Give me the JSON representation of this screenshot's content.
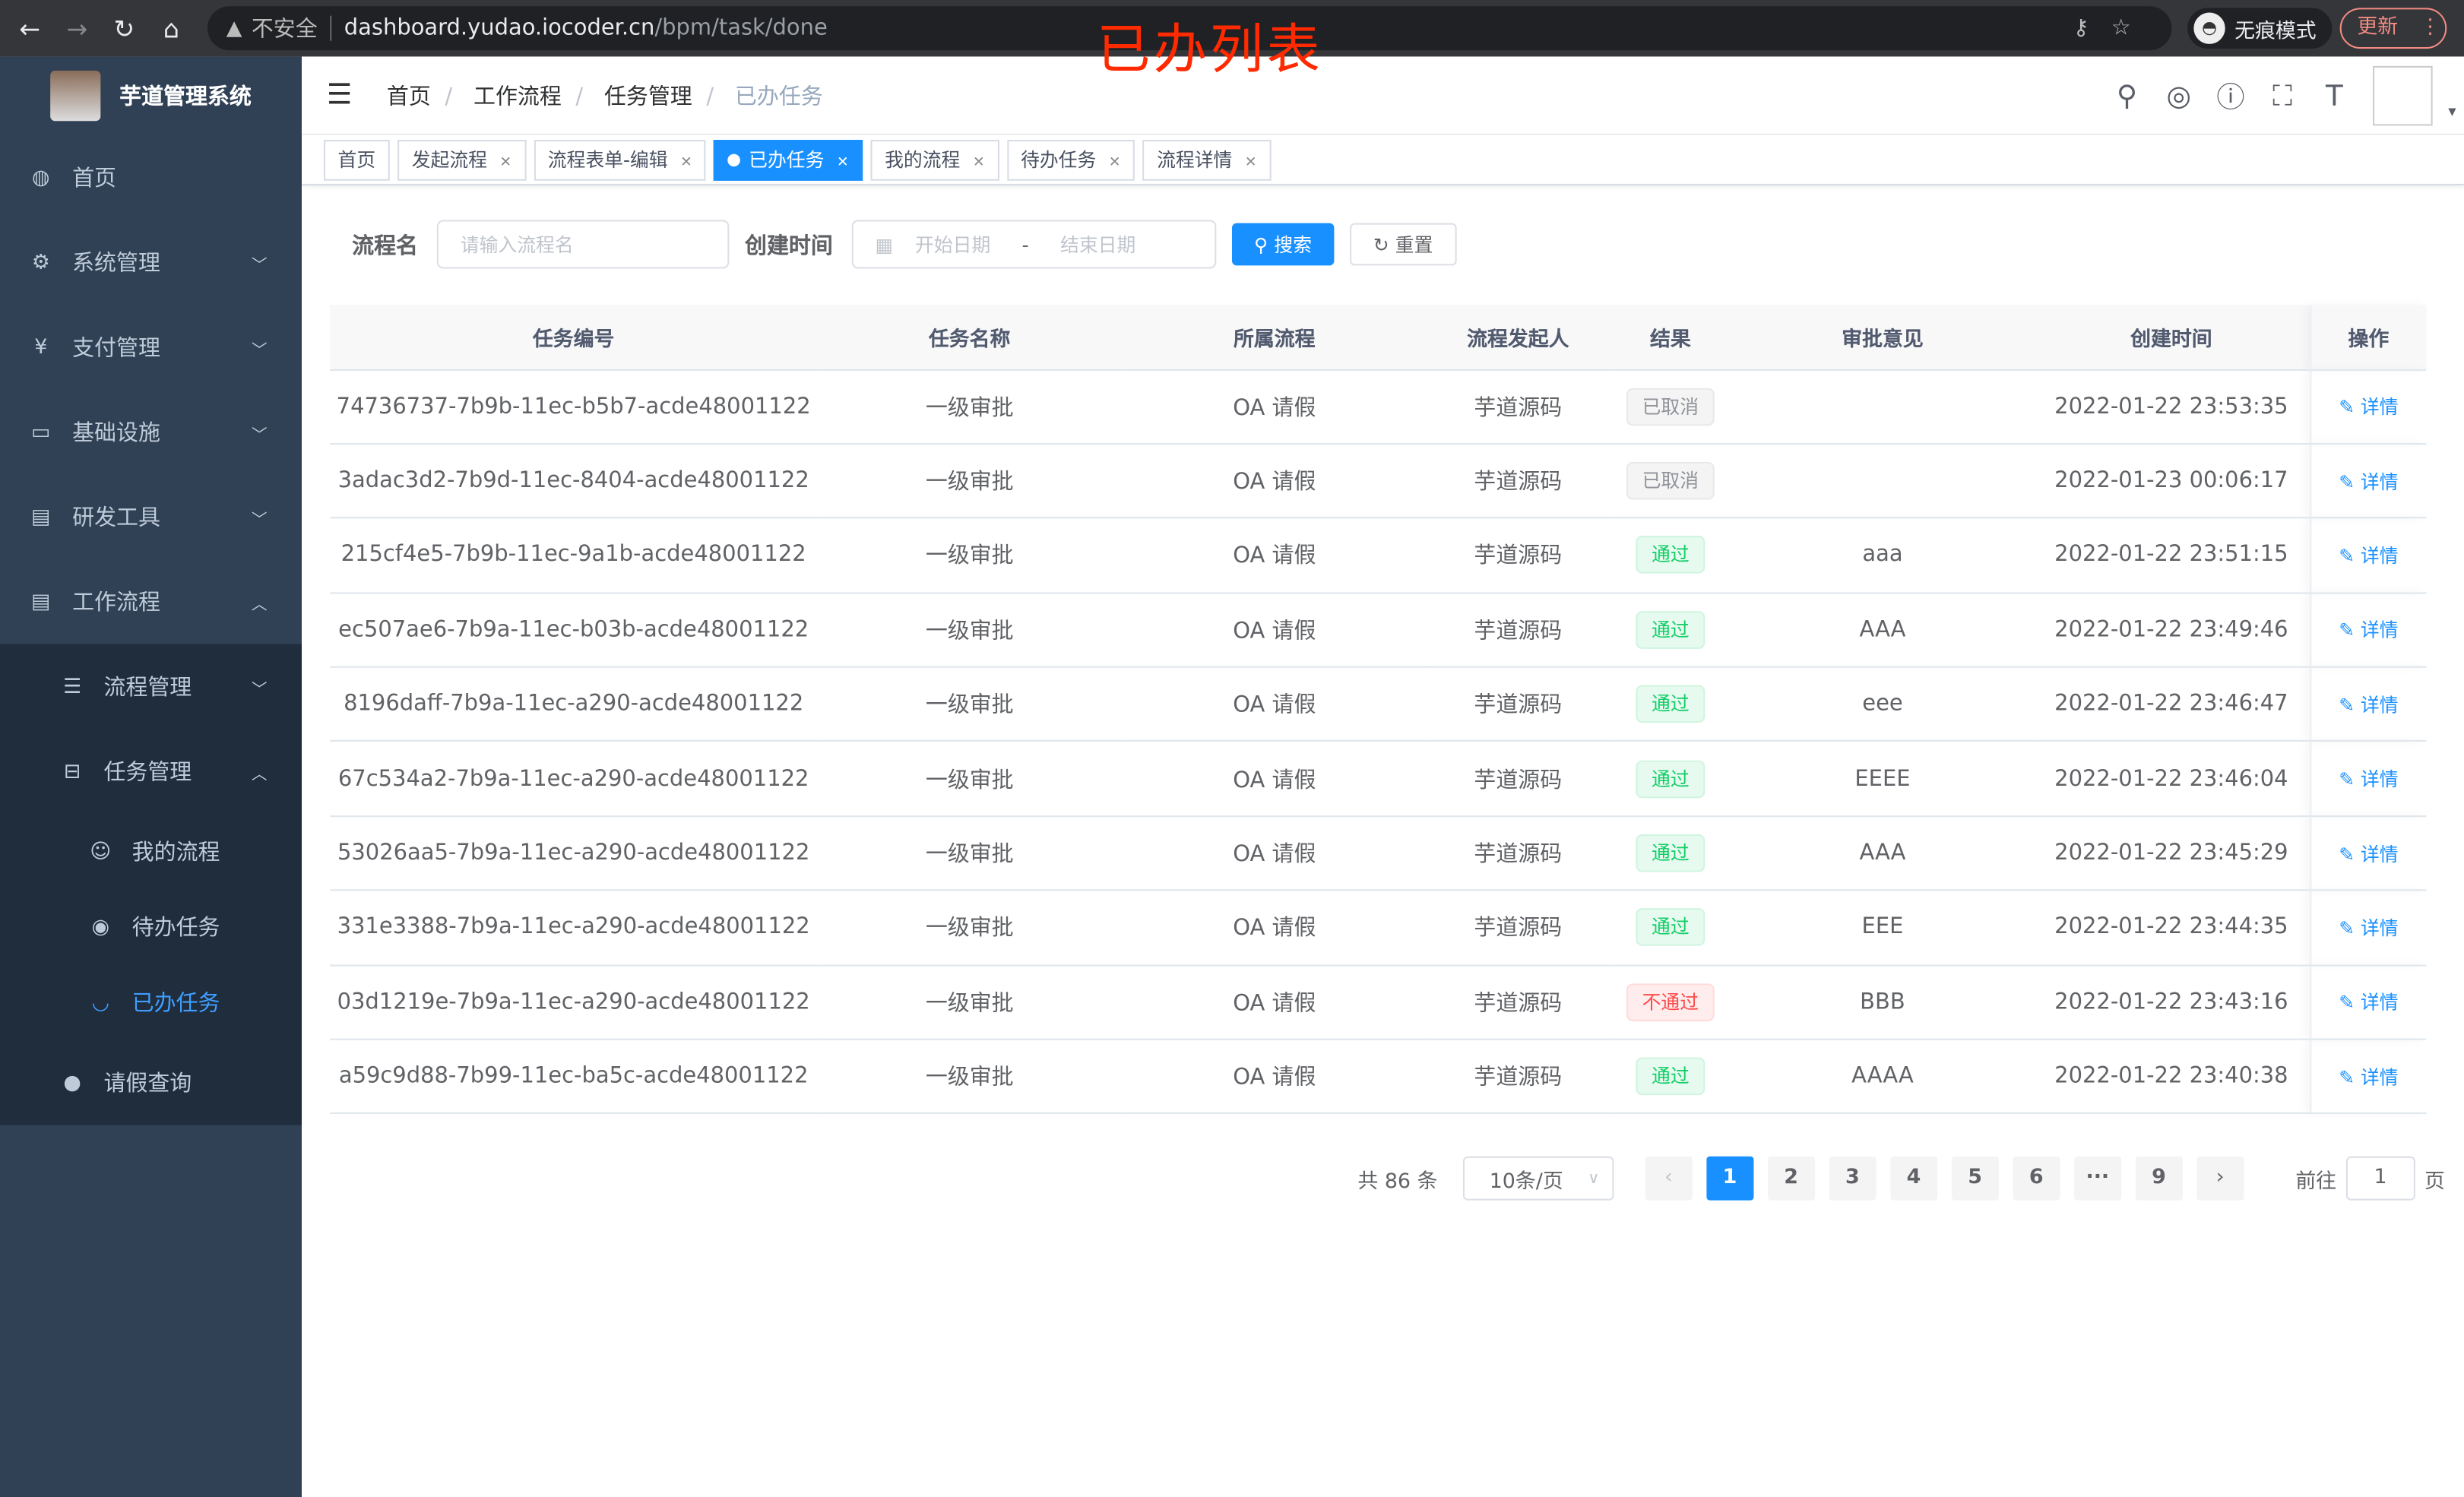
{
  "browser": {
    "security": "不安全",
    "url_host": "dashboard.yudao.iocoder.cn",
    "url_path": "/bpm/task/done",
    "incognito": "无痕模式",
    "update": "更新"
  },
  "overlay_title": "已办列表",
  "sidebar": {
    "title": "芋道管理系统",
    "items": [
      {
        "label": "首页",
        "icon": "dashboard-icon"
      },
      {
        "label": "系统管理",
        "icon": "gear-icon"
      },
      {
        "label": "支付管理",
        "icon": "yen-icon"
      },
      {
        "label": "基础设施",
        "icon": "monitor-icon"
      },
      {
        "label": "研发工具",
        "icon": "toolbox-icon"
      },
      {
        "label": "工作流程",
        "icon": "toolbox-icon"
      }
    ],
    "workflow_sub": [
      {
        "label": "流程管理"
      },
      {
        "label": "任务管理"
      }
    ],
    "task_sub": [
      {
        "label": "我的流程"
      },
      {
        "label": "待办任务"
      },
      {
        "label": "已办任务"
      }
    ],
    "leave": "请假查询"
  },
  "breadcrumb": [
    "首页",
    "工作流程",
    "任务管理",
    "已办任务"
  ],
  "tags": [
    {
      "label": "首页"
    },
    {
      "label": "发起流程"
    },
    {
      "label": "流程表单-编辑"
    },
    {
      "label": "已办任务",
      "active": true
    },
    {
      "label": "我的流程"
    },
    {
      "label": "待办任务"
    },
    {
      "label": "流程详情"
    }
  ],
  "search": {
    "name_label": "流程名",
    "name_placeholder": "请输入流程名",
    "time_label": "创建时间",
    "start_placeholder": "开始日期",
    "range_sep": "-",
    "end_placeholder": "结束日期",
    "search_btn": "搜索",
    "reset_btn": "重置"
  },
  "table": {
    "columns": [
      "任务编号",
      "任务名称",
      "所属流程",
      "流程发起人",
      "结果",
      "审批意见",
      "创建时间",
      "操作"
    ],
    "action": "详情",
    "rows": [
      [
        "74736737-7b9b-11ec-b5b7-acde48001122",
        "一级审批",
        "OA 请假",
        "芋道源码",
        "已取消",
        "",
        "2022-01-22 23:53:35"
      ],
      [
        "3adac3d2-7b9d-11ec-8404-acde48001122",
        "一级审批",
        "OA 请假",
        "芋道源码",
        "已取消",
        "",
        "2022-01-23 00:06:17"
      ],
      [
        "215cf4e5-7b9b-11ec-9a1b-acde48001122",
        "一级审批",
        "OA 请假",
        "芋道源码",
        "通过",
        "aaa",
        "2022-01-22 23:51:15"
      ],
      [
        "ec507ae6-7b9a-11ec-b03b-acde48001122",
        "一级审批",
        "OA 请假",
        "芋道源码",
        "通过",
        "AAA",
        "2022-01-22 23:49:46"
      ],
      [
        "8196daff-7b9a-11ec-a290-acde48001122",
        "一级审批",
        "OA 请假",
        "芋道源码",
        "通过",
        "eee",
        "2022-01-22 23:46:47"
      ],
      [
        "67c534a2-7b9a-11ec-a290-acde48001122",
        "一级审批",
        "OA 请假",
        "芋道源码",
        "通过",
        "EEEE",
        "2022-01-22 23:46:04"
      ],
      [
        "53026aa5-7b9a-11ec-a290-acde48001122",
        "一级审批",
        "OA 请假",
        "芋道源码",
        "通过",
        "AAA",
        "2022-01-22 23:45:29"
      ],
      [
        "331e3388-7b9a-11ec-a290-acde48001122",
        "一级审批",
        "OA 请假",
        "芋道源码",
        "通过",
        "EEE",
        "2022-01-22 23:44:35"
      ],
      [
        "03d1219e-7b9a-11ec-a290-acde48001122",
        "一级审批",
        "OA 请假",
        "芋道源码",
        "不通过",
        "BBB",
        "2022-01-22 23:43:16"
      ],
      [
        "a59c9d88-7b99-11ec-ba5c-acde48001122",
        "一级审批",
        "OA 请假",
        "芋道源码",
        "通过",
        "AAAA",
        "2022-01-22 23:40:38"
      ]
    ]
  },
  "pagination": {
    "total": "共 86 条",
    "page_size": "10条/页",
    "pages": [
      "1",
      "2",
      "3",
      "4",
      "5",
      "6",
      "···",
      "9"
    ],
    "current": "1",
    "goto_label": "前往",
    "goto_value": "1",
    "page_unit": "页"
  }
}
